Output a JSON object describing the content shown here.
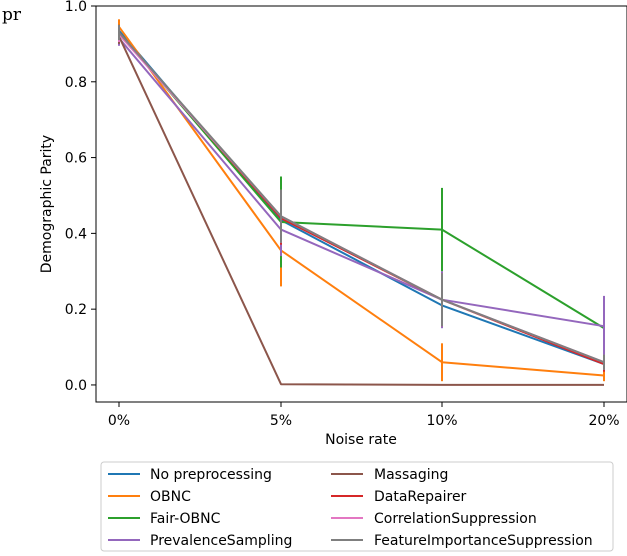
{
  "page": {
    "clipped_text": "pr"
  },
  "chart_data": {
    "type": "line",
    "xlabel": "Noise rate",
    "ylabel": "Demographic Parity",
    "categories": [
      "0%",
      "5%",
      "10%",
      "20%"
    ],
    "ylim": [
      -0.045,
      1.0
    ],
    "yticks": [
      0.0,
      0.2,
      0.4,
      0.6,
      0.8,
      1.0
    ],
    "ytick_labels": [
      "0.0",
      "0.2",
      "0.4",
      "0.6",
      "0.8",
      "1.0"
    ],
    "grid": false,
    "legend_position": "bottom",
    "series": [
      {
        "name": "No preprocessing",
        "color": "#1f77b4",
        "values": [
          0.935,
          0.435,
          0.21,
          0.055
        ],
        "err": [
          0.02,
          0.08,
          0.06,
          0.02
        ]
      },
      {
        "name": "OBNC",
        "color": "#ff7f0e",
        "values": [
          0.945,
          0.355,
          0.06,
          0.025
        ],
        "err": [
          0.02,
          0.095,
          0.05,
          0.015
        ]
      },
      {
        "name": "Fair-OBNC",
        "color": "#2ca02c",
        "values": [
          0.93,
          0.43,
          0.41,
          0.15
        ],
        "err": [
          0.02,
          0.12,
          0.11,
          0.08
        ]
      },
      {
        "name": "PrevalenceSampling",
        "color": "#9467bd",
        "values": [
          0.915,
          0.41,
          0.225,
          0.155
        ],
        "err": [
          0.02,
          0.07,
          0.075,
          0.08
        ]
      },
      {
        "name": "Massaging",
        "color": "#8c564b",
        "values": [
          0.92,
          0.002,
          0.0,
          0.0
        ],
        "err": [
          0.02,
          0.0,
          0.0,
          0.0
        ]
      },
      {
        "name": "DataRepairer",
        "color": "#d62728",
        "values": [
          0.93,
          0.44,
          0.225,
          0.055
        ],
        "err": [
          0.02,
          0.07,
          0.07,
          0.02
        ]
      },
      {
        "name": "CorrelationSuppression",
        "color": "#e377c2",
        "values": [
          0.925,
          0.445,
          0.225,
          0.06
        ],
        "err": [
          0.02,
          0.07,
          0.07,
          0.02
        ]
      },
      {
        "name": "FeatureImportanceSuppression",
        "color": "#7f7f7f",
        "values": [
          0.93,
          0.445,
          0.225,
          0.06
        ],
        "err": [
          0.02,
          0.07,
          0.07,
          0.02
        ]
      }
    ]
  }
}
